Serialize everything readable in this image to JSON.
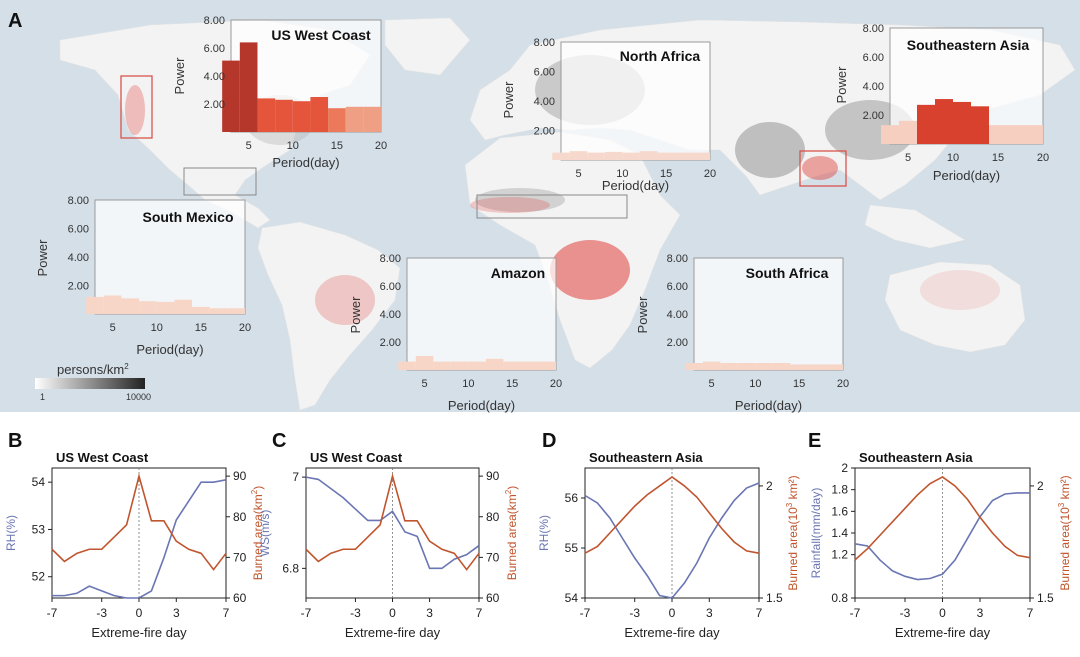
{
  "panel_labels": {
    "a": "A",
    "b": "B",
    "c": "C",
    "d": "D",
    "e": "E"
  },
  "map_legend": {
    "title": "persons/km",
    "title_sup": "2",
    "min": "1",
    "max": "10000"
  },
  "colors": {
    "ocean": "#d4dfe8",
    "land": "#f4f4f4",
    "fire": "#e0403a",
    "rh_line": "#6a76b3",
    "burn_line": "#c0552e",
    "inset_border": "#9a9a9a",
    "region_box": "#d9544d"
  },
  "chart_data": [
    {
      "type": "bar",
      "panel": "A",
      "title": "US West Coast",
      "xlabel": "Period(day)",
      "ylabel": "Power",
      "yticks": [
        "2.00",
        "4.00",
        "6.00",
        "8.00"
      ],
      "xticks": [
        "5",
        "10",
        "15",
        "20"
      ],
      "xlim": [
        3,
        20
      ],
      "ylim": [
        0,
        8
      ],
      "x": [
        4,
        6,
        8,
        10,
        12,
        14,
        16,
        18,
        20
      ],
      "values": [
        5.1,
        6.4,
        2.4,
        2.3,
        2.2,
        2.5,
        1.7,
        1.8,
        1.8
      ],
      "colors": [
        "#b5362b",
        "#b5362b",
        "#e5553c",
        "#e5553c",
        "#e5553c",
        "#e5553c",
        "#ec7a5a",
        "#efa084",
        "#efa084"
      ]
    },
    {
      "type": "bar",
      "panel": "A",
      "title": "North Africa",
      "xlabel": "Period(day)",
      "ylabel": "Power",
      "yticks": [
        "2.00",
        "4.00",
        "6.00",
        "8.00"
      ],
      "xticks": [
        "5",
        "10",
        "15",
        "20"
      ],
      "xlim": [
        3,
        20
      ],
      "ylim": [
        0,
        8
      ],
      "x": [
        4,
        6,
        8,
        10,
        12,
        14,
        16,
        18,
        20
      ],
      "values": [
        0.5,
        0.6,
        0.5,
        0.55,
        0.5,
        0.6,
        0.5,
        0.5,
        0.5
      ],
      "colors": [
        "#f7d8cc",
        "#f7d8cc",
        "#f7d8cc",
        "#f7d8cc",
        "#f7d8cc",
        "#f7d8cc",
        "#f7d8cc",
        "#f7d8cc",
        "#f7d8cc"
      ]
    },
    {
      "type": "bar",
      "panel": "A",
      "title": "Southeastern Asia",
      "xlabel": "Period(day)",
      "ylabel": "Power",
      "yticks": [
        "2.00",
        "4.00",
        "6.00",
        "8.00"
      ],
      "xticks": [
        "5",
        "10",
        "15",
        "20"
      ],
      "xlim": [
        3,
        20
      ],
      "ylim": [
        0,
        8
      ],
      "x": [
        4,
        6,
        8,
        10,
        12,
        14,
        16,
        18,
        20
      ],
      "values": [
        1.3,
        1.6,
        2.7,
        3.1,
        2.9,
        2.6,
        1.3,
        1.3,
        1.3
      ],
      "colors": [
        "#f6cfc0",
        "#f6cfc0",
        "#d9412f",
        "#d9412f",
        "#d9412f",
        "#d9412f",
        "#f6cfc0",
        "#f6cfc0",
        "#f6cfc0"
      ]
    },
    {
      "type": "bar",
      "panel": "A",
      "title": "South Mexico",
      "xlabel": "Period(day)",
      "ylabel": "Power",
      "yticks": [
        "2.00",
        "4.00",
        "6.00",
        "8.00"
      ],
      "xticks": [
        "5",
        "10",
        "15",
        "20"
      ],
      "xlim": [
        3,
        20
      ],
      "ylim": [
        0,
        8
      ],
      "x": [
        4,
        6,
        8,
        10,
        12,
        14,
        16,
        18,
        20
      ],
      "values": [
        1.2,
        1.3,
        1.1,
        0.9,
        0.85,
        1.0,
        0.5,
        0.4,
        0.4
      ],
      "colors": [
        "#f7d6c8",
        "#f7d6c8",
        "#f7d6c8",
        "#f7d6c8",
        "#f7d6c8",
        "#f7d6c8",
        "#f7d6c8",
        "#f7d6c8",
        "#f7d6c8"
      ]
    },
    {
      "type": "bar",
      "panel": "A",
      "title": "Amazon",
      "xlabel": "Period(day)",
      "ylabel": "Power",
      "yticks": [
        "2.00",
        "4.00",
        "6.00",
        "8.00"
      ],
      "xticks": [
        "5",
        "10",
        "15",
        "20"
      ],
      "xlim": [
        3,
        20
      ],
      "ylim": [
        0,
        8
      ],
      "x": [
        4,
        6,
        8,
        10,
        12,
        14,
        16,
        18,
        20
      ],
      "values": [
        0.6,
        1.0,
        0.6,
        0.6,
        0.6,
        0.8,
        0.6,
        0.6,
        0.6
      ],
      "colors": [
        "#f7d6c8",
        "#f7d6c8",
        "#f7d6c8",
        "#f7d6c8",
        "#f7d6c8",
        "#f7d6c8",
        "#f7d6c8",
        "#f7d6c8",
        "#f7d6c8"
      ]
    },
    {
      "type": "bar",
      "panel": "A",
      "title": "South Africa",
      "xlabel": "Period(day)",
      "ylabel": "Power",
      "yticks": [
        "2.00",
        "4.00",
        "6.00",
        "8.00"
      ],
      "xticks": [
        "5",
        "10",
        "15",
        "20"
      ],
      "xlim": [
        3,
        20
      ],
      "ylim": [
        0,
        8
      ],
      "x": [
        4,
        6,
        8,
        10,
        12,
        14,
        16,
        18,
        20
      ],
      "values": [
        0.5,
        0.6,
        0.5,
        0.5,
        0.5,
        0.5,
        0.4,
        0.4,
        0.4
      ],
      "colors": [
        "#f7d6c8",
        "#f7d6c8",
        "#f7d6c8",
        "#f7d6c8",
        "#f7d6c8",
        "#f7d6c8",
        "#f7d6c8",
        "#f7d6c8",
        "#f7d6c8"
      ]
    },
    {
      "type": "line",
      "panel": "B",
      "title": "US West Coast",
      "xlabel": "Extreme-fire day",
      "ylabel_left": "RH(%)",
      "ylabel_right": "Burned area(km",
      "ylabel_right_sup": "2",
      "ylabel_right_end": ")",
      "xticks": [
        "-7",
        "-3",
        "0",
        "3",
        "7"
      ],
      "xtick_values": [
        -7,
        -3,
        0,
        3,
        7
      ],
      "yticks_left": [
        "52",
        "53",
        "54"
      ],
      "yticks_left_values": [
        52,
        53,
        54
      ],
      "ylim_left": [
        51.55,
        54.3
      ],
      "yticks_right": [
        "60",
        "70",
        "80",
        "90"
      ],
      "yticks_right_values": [
        60,
        70,
        80,
        90
      ],
      "ylim_right": [
        60,
        92
      ],
      "x": [
        -7,
        -6,
        -5,
        -4,
        -3,
        -2,
        -1,
        0,
        1,
        2,
        3,
        4,
        5,
        6,
        7
      ],
      "series": [
        {
          "axis": "left",
          "color": "#6a76b3",
          "values": [
            51.6,
            51.6,
            51.65,
            51.8,
            51.7,
            51.6,
            51.55,
            51.55,
            51.7,
            52.4,
            53.2,
            53.6,
            54.0,
            54.0,
            54.05
          ]
        },
        {
          "axis": "right",
          "color": "#c0552e",
          "values": [
            72,
            69,
            71,
            72,
            72,
            75,
            78,
            90,
            79,
            79,
            74,
            72,
            71,
            67,
            71
          ]
        }
      ]
    },
    {
      "type": "line",
      "panel": "C",
      "title": "US West Coast",
      "xlabel": "Extreme-fire day",
      "ylabel_left": "WS(m/s)",
      "ylabel_right": "Burned area(km",
      "ylabel_right_sup": "2",
      "ylabel_right_end": ")",
      "xticks": [
        "-7",
        "-3",
        "0",
        "3",
        "7"
      ],
      "xtick_values": [
        -7,
        -3,
        0,
        3,
        7
      ],
      "yticks_left": [
        "6.8",
        "7"
      ],
      "yticks_left_values": [
        6.8,
        7.0
      ],
      "ylim_left": [
        6.735,
        7.02
      ],
      "yticks_right": [
        "60",
        "70",
        "80",
        "90"
      ],
      "yticks_right_values": [
        60,
        70,
        80,
        90
      ],
      "ylim_right": [
        60,
        92
      ],
      "x": [
        -7,
        -6,
        -5,
        -4,
        -3,
        -2,
        -1,
        0,
        1,
        2,
        3,
        4,
        5,
        6,
        7
      ],
      "series": [
        {
          "axis": "left",
          "color": "#6a76b3",
          "values": [
            7.0,
            6.995,
            6.975,
            6.955,
            6.93,
            6.905,
            6.905,
            6.925,
            6.88,
            6.87,
            6.8,
            6.8,
            6.82,
            6.83,
            6.85
          ]
        },
        {
          "axis": "right",
          "color": "#c0552e",
          "values": [
            72,
            69,
            71,
            72,
            72,
            75,
            78,
            90,
            79,
            79,
            74,
            72,
            71,
            67,
            71
          ]
        }
      ]
    },
    {
      "type": "line",
      "panel": "D",
      "title": "Southeastern Asia",
      "xlabel": "Extreme-fire day",
      "ylabel_left": "RH(%)",
      "ylabel_right": "Burned area(10",
      "ylabel_right_sup": "3",
      "ylabel_right_end": " km²)",
      "xticks": [
        "-7",
        "-3",
        "0",
        "3",
        "7"
      ],
      "xtick_values": [
        -7,
        -3,
        0,
        3,
        7
      ],
      "yticks_left": [
        "54",
        "55",
        "56"
      ],
      "yticks_left_values": [
        54,
        55,
        56
      ],
      "ylim_left": [
        54,
        56.6
      ],
      "yticks_right": [
        "1.5",
        "2"
      ],
      "yticks_right_values": [
        1.5,
        2.0
      ],
      "ylim_right": [
        1.5,
        2.08
      ],
      "x": [
        -7,
        -6,
        -5,
        -4,
        -3,
        -2,
        -1,
        0,
        1,
        2,
        3,
        4,
        5,
        6,
        7
      ],
      "series": [
        {
          "axis": "left",
          "color": "#6a76b3",
          "values": [
            56.05,
            55.9,
            55.6,
            55.2,
            54.8,
            54.45,
            54.05,
            54.0,
            54.3,
            54.7,
            55.2,
            55.6,
            55.95,
            56.2,
            56.3
          ]
        },
        {
          "axis": "right",
          "color": "#c0552e",
          "values": [
            1.7,
            1.73,
            1.79,
            1.85,
            1.91,
            1.96,
            2.0,
            2.04,
            2.0,
            1.95,
            1.88,
            1.81,
            1.75,
            1.71,
            1.7
          ]
        }
      ]
    },
    {
      "type": "line",
      "panel": "E",
      "title": "Southeastern Asia",
      "xlabel": "Extreme-fire day",
      "ylabel_left": "Rainfall(mm/day)",
      "ylabel_right": "Burned area(10",
      "ylabel_right_sup": "3",
      "ylabel_right_end": " km²)",
      "xticks": [
        "-7",
        "-3",
        "0",
        "3",
        "7"
      ],
      "xtick_values": [
        -7,
        -3,
        0,
        3,
        7
      ],
      "yticks_left": [
        "0.8",
        "1.2",
        "1.4",
        "1.6",
        "1.8",
        "2"
      ],
      "yticks_left_values": [
        0.8,
        1.2,
        1.4,
        1.6,
        1.8,
        2.0
      ],
      "ylim_left": [
        0.8,
        2.0
      ],
      "yticks_right": [
        "1.5",
        "2"
      ],
      "yticks_right_values": [
        1.5,
        2.0
      ],
      "ylim_right": [
        1.5,
        2.08
      ],
      "x": [
        -7,
        -6,
        -5,
        -4,
        -3,
        -2,
        -1,
        0,
        1,
        2,
        3,
        4,
        5,
        6,
        7
      ],
      "series": [
        {
          "axis": "left",
          "color": "#6a76b3",
          "values": [
            1.3,
            1.28,
            1.15,
            1.05,
            1.0,
            0.97,
            0.98,
            1.02,
            1.15,
            1.35,
            1.55,
            1.7,
            1.76,
            1.77,
            1.77
          ]
        },
        {
          "axis": "right",
          "color": "#c0552e",
          "values": [
            1.67,
            1.72,
            1.78,
            1.84,
            1.9,
            1.96,
            2.01,
            2.04,
            2.0,
            1.94,
            1.86,
            1.79,
            1.73,
            1.69,
            1.68
          ]
        }
      ]
    }
  ]
}
